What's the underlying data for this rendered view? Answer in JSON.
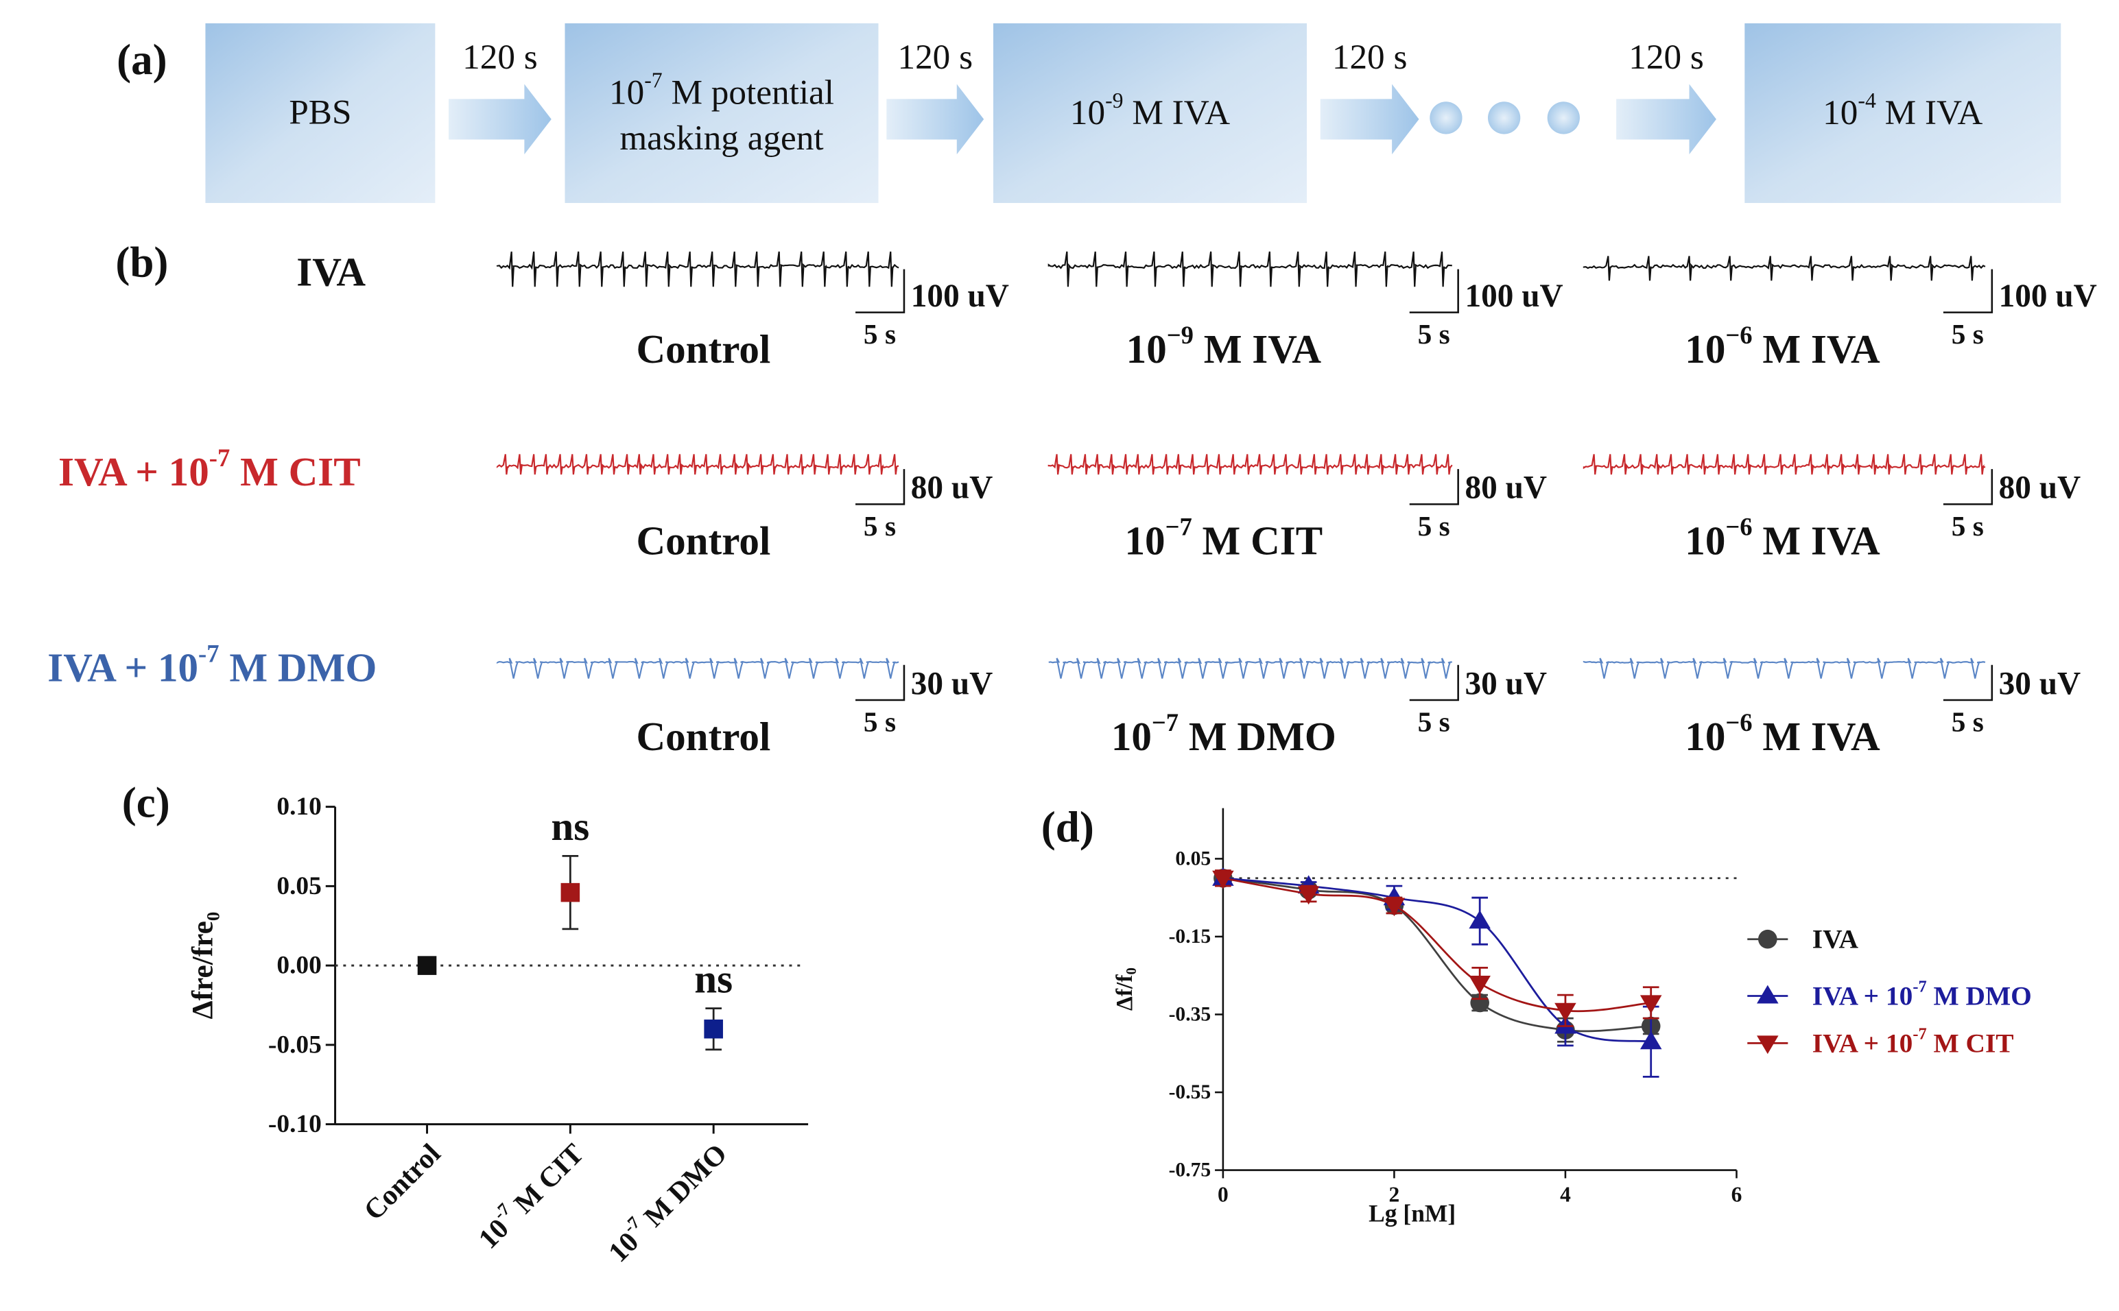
{
  "panel_a": {
    "label": "(a)",
    "steps": [
      [
        "PBS"
      ],
      [
        {
          "pre": "10",
          "sup": "-7",
          "post": " M potential"
        },
        "masking agent"
      ],
      [
        {
          "pre": "10",
          "sup": "-9",
          "post": " M IVA"
        }
      ],
      [
        {
          "pre": "10",
          "sup": "-4",
          "post": " M IVA"
        }
      ]
    ],
    "intervals": [
      "120 s",
      "120 s",
      "120 s",
      "120 s"
    ]
  },
  "panel_b": {
    "label": "(b)",
    "rows": [
      {
        "name": "IVA",
        "color": "#111111",
        "traces": [
          {
            "condition": "Control",
            "amplitude": "100 uV",
            "time": "5 s"
          },
          {
            "condition": {
              "pre": "10",
              "sup": "−9",
              "post": " M IVA"
            },
            "amplitude": "100 uV",
            "time": "5 s"
          },
          {
            "condition": {
              "pre": "10",
              "sup": "−6",
              "post": " M IVA"
            },
            "amplitude": "100 uV",
            "time": "5 s"
          }
        ]
      },
      {
        "name": {
          "pre": "IVA + 10",
          "sup": "-7",
          "post": " M CIT"
        },
        "color": "#c8282c",
        "traces": [
          {
            "condition": "Control",
            "amplitude": "80 uV",
            "time": "5 s"
          },
          {
            "condition": {
              "pre": "10",
              "sup": "−7",
              "post": " M CIT"
            },
            "amplitude": "80 uV",
            "time": "5 s"
          },
          {
            "condition": {
              "pre": "10",
              "sup": "−6",
              "post": " M IVA"
            },
            "amplitude": "80 uV",
            "time": "5 s"
          }
        ]
      },
      {
        "name": {
          "pre": "IVA + 10",
          "sup": "-7",
          "post": " M DMO"
        },
        "color": "#3b63aa",
        "traces": [
          {
            "condition": "Control",
            "amplitude": "30 uV",
            "time": "5 s"
          },
          {
            "condition": {
              "pre": "10",
              "sup": "−7",
              "post": " M DMO"
            },
            "amplitude": "30 uV",
            "time": "5 s"
          },
          {
            "condition": {
              "pre": "10",
              "sup": "−6",
              "post": " M IVA"
            },
            "amplitude": "30 uV",
            "time": "5 s"
          }
        ]
      }
    ]
  },
  "chart_data": [
    {
      "type": "point",
      "panel_label": "(c)",
      "y_label": {
        "pre": "Δfre/fre",
        "sub": "0"
      },
      "categories": [
        "Control",
        {
          "pre": "10",
          "sup": "-7",
          "post": " M CIT"
        },
        {
          "pre": "10",
          "sup": "-7",
          "post": " M DMO"
        }
      ],
      "values": [
        0,
        0.046,
        -0.04
      ],
      "errors": [
        0,
        0.023,
        0.013
      ],
      "colors": [
        "#111111",
        "#a31818",
        "#0d1f8c"
      ],
      "annotations": [
        null,
        "ns",
        "ns"
      ],
      "ylim": [
        -0.1,
        0.1
      ],
      "yticks": [
        {
          "value": 0.1,
          "label": "0.10"
        },
        0.05,
        {
          "value": 0,
          "label": "0.00"
        },
        -0.05,
        {
          "value": -0.1,
          "label": "-0.10"
        }
      ],
      "reference_line": 0
    },
    {
      "type": "line",
      "panel_label": "(d)",
      "x_label": "Lg [nM]",
      "y_label": {
        "pre": "Δf/f",
        "sub": "0"
      },
      "x": [
        0,
        1,
        2,
        3,
        4,
        5
      ],
      "series": [
        {
          "name": "IVA",
          "color": "#404040",
          "marker": "circle",
          "values": [
            0,
            -0.03,
            -0.07,
            -0.32,
            -0.39,
            -0.38
          ],
          "errors": [
            0.01,
            0.01,
            0.02,
            0.02,
            0.03,
            0.02
          ]
        },
        {
          "name": {
            "pre": "IVA + 10",
            "sup": "-7",
            "post": " M DMO"
          },
          "color": "#1c1c9c",
          "marker": "triangle-up",
          "values": [
            0,
            -0.02,
            -0.05,
            -0.11,
            -0.38,
            -0.42
          ],
          "errors": [
            0.01,
            0.01,
            0.03,
            0.06,
            0.05,
            0.09
          ]
        },
        {
          "name": {
            "pre": "IVA + 10",
            "sup": "-7",
            "post": " M CIT"
          },
          "color": "#a31515",
          "marker": "triangle-down",
          "values": [
            0,
            -0.04,
            -0.07,
            -0.27,
            -0.34,
            -0.32
          ],
          "errors": [
            0.02,
            0.02,
            0.02,
            0.04,
            0.04,
            0.04
          ]
        }
      ],
      "xlim": [
        0,
        6
      ],
      "xticks": [
        0,
        2,
        4,
        6
      ],
      "ylim": [
        -0.75,
        0.18
      ],
      "yticks": [
        0.05,
        -0.15,
        -0.35,
        -0.55,
        -0.75
      ],
      "reference_line": 0,
      "legend": "right"
    }
  ]
}
